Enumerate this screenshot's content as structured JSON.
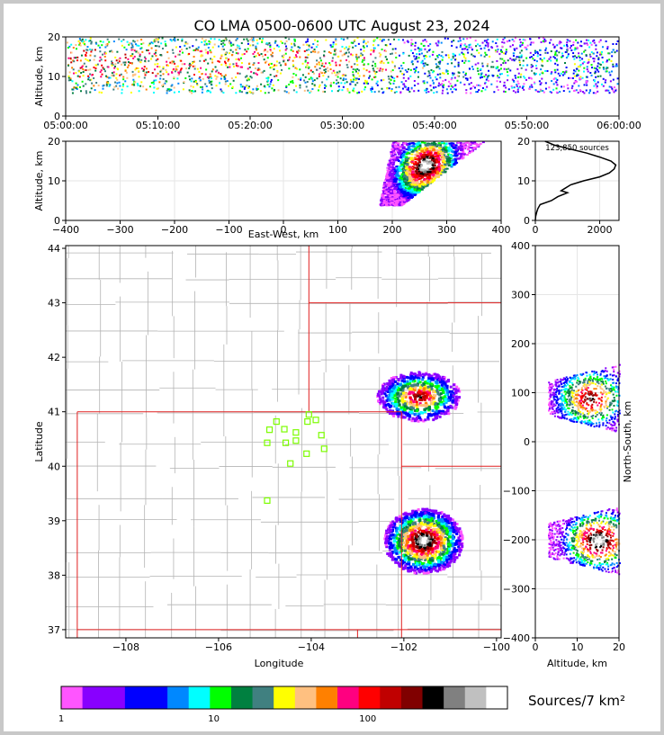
{
  "title": "CO LMA 0500-0600 UTC August 23, 2024",
  "colors": {
    "state_border": "#e02020",
    "county_border": "#b4b4b4",
    "station_marker": "#7cfc00",
    "frame_background": "#c8c8c8"
  },
  "chart_data": [
    {
      "id": "time_height",
      "type": "heatmap",
      "xlabel": "",
      "ylabel": "Altitude, km",
      "x_ticks": [
        "05:00:00",
        "05:10:00",
        "05:20:00",
        "05:30:00",
        "05:40:00",
        "05:50:00",
        "06:00:00"
      ],
      "xlim_minutes": [
        0,
        60
      ],
      "ylim": [
        0,
        20
      ],
      "y_ticks": [
        0,
        10,
        20
      ],
      "source_band_km": [
        6,
        20
      ]
    },
    {
      "id": "ew_altitude",
      "type": "heatmap",
      "xlabel": "East-West, km",
      "ylabel": "Altitude, km",
      "xlim": [
        -400,
        400
      ],
      "x_ticks": [
        -400,
        -300,
        -200,
        -100,
        0,
        100,
        200,
        300,
        400
      ],
      "ylim": [
        0,
        20
      ],
      "y_ticks": [
        0,
        10,
        20
      ],
      "grid": true
    },
    {
      "id": "altitude_histogram",
      "type": "line",
      "annotation": "123,850 sources",
      "xlim": [
        0,
        2600
      ],
      "x_ticks": [
        0,
        2000
      ],
      "ylim": [
        0,
        20
      ],
      "y_ticks": [
        0,
        10,
        20
      ],
      "profile": {
        "altitude_km": [
          0,
          1,
          2,
          3,
          4,
          5,
          6,
          7,
          7.5,
          8,
          9,
          10,
          11,
          12,
          13,
          14,
          15,
          16,
          17,
          18,
          19,
          20
        ],
        "count": [
          0,
          10,
          40,
          80,
          150,
          500,
          700,
          1000,
          800,
          900,
          1100,
          1500,
          2000,
          2300,
          2450,
          2500,
          2350,
          2000,
          1600,
          1100,
          600,
          300
        ]
      }
    },
    {
      "id": "plan_view",
      "type": "heatmap",
      "xlabel": "Longitude",
      "ylabel": "Latitude",
      "xlim": [
        -109.3,
        -99.9
      ],
      "ylim": [
        36.85,
        44.05
      ],
      "x_ticks": [
        -108,
        -106,
        -104,
        -102,
        -100
      ],
      "y_ticks": [
        37,
        38,
        39,
        40,
        41,
        42,
        43,
        44
      ],
      "storms": [
        {
          "lon": -101.7,
          "lat": 41.3,
          "intensity": "high"
        },
        {
          "lon": -101.6,
          "lat": 38.65,
          "intensity": "very-high"
        }
      ],
      "stations": [
        [
          -104.75,
          40.82
        ],
        [
          -104.05,
          40.95
        ],
        [
          -103.9,
          40.85
        ],
        [
          -104.08,
          40.82
        ],
        [
          -104.9,
          40.67
        ],
        [
          -104.58,
          40.68
        ],
        [
          -104.33,
          40.62
        ],
        [
          -103.78,
          40.57
        ],
        [
          -104.95,
          40.43
        ],
        [
          -104.55,
          40.43
        ],
        [
          -104.33,
          40.47
        ],
        [
          -103.72,
          40.32
        ],
        [
          -104.1,
          40.23
        ],
        [
          -104.45,
          40.05
        ],
        [
          -104.95,
          39.37
        ]
      ]
    },
    {
      "id": "altitude_ns",
      "type": "heatmap",
      "xlabel": "Altitude, km",
      "ylabel": "North-South, km",
      "xlim": [
        0,
        20
      ],
      "x_ticks": [
        0,
        10,
        20
      ],
      "ylim": [
        -400,
        400
      ],
      "y_ticks": [
        -400,
        -300,
        -200,
        -100,
        0,
        100,
        200,
        300,
        400
      ],
      "grid": true
    }
  ],
  "colorbar": {
    "label": "Sources/7 km²",
    "tick_labels": [
      "1",
      "10",
      "100"
    ],
    "colors": [
      "#ff55ff",
      "#8800ff",
      "#8800ff",
      "#0000ff",
      "#0000ff",
      "#0088ff",
      "#00ffff",
      "#00ff00",
      "#008040",
      "#408080",
      "#ffff00",
      "#ffc080",
      "#ff8000",
      "#ff0080",
      "#ff0000",
      "#c00000",
      "#800000",
      "#000000",
      "#808080",
      "#c0c0c0",
      "#ffffff"
    ]
  }
}
